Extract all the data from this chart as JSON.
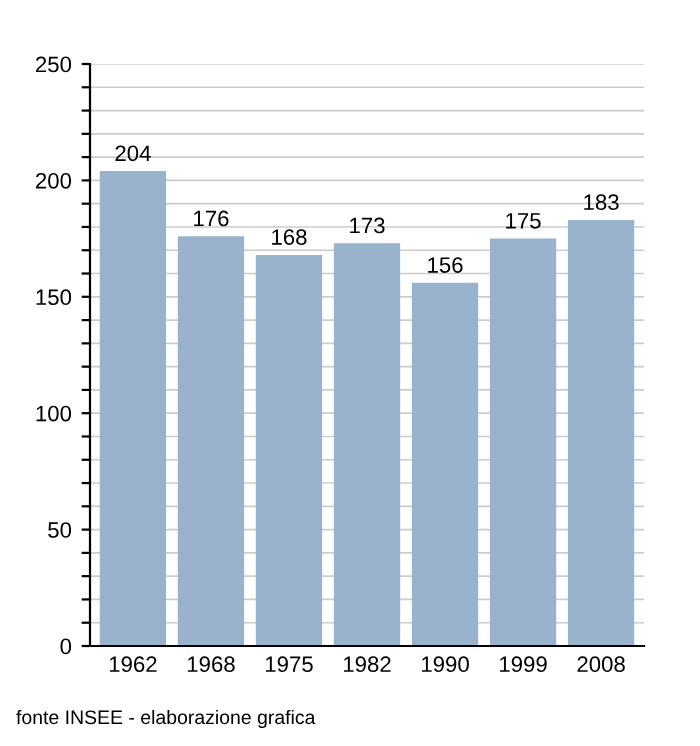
{
  "chart_data": {
    "type": "bar",
    "categories": [
      "1962",
      "1968",
      "1975",
      "1982",
      "1990",
      "1999",
      "2008"
    ],
    "values": [
      204,
      176,
      168,
      173,
      156,
      175,
      183
    ],
    "color": "#9ab3cd",
    "ylim": [
      0,
      250
    ],
    "yticks": [
      0,
      {
        "value": 10,
        "label": null
      },
      {
        "value": 20,
        "label": null
      },
      {
        "value": 30,
        "label": null
      },
      {
        "value": 40,
        "label": null
      },
      50,
      {
        "value": 60,
        "label": null
      },
      {
        "value": 70,
        "label": null
      },
      {
        "value": 80,
        "label": null
      },
      {
        "value": 90,
        "label": null
      },
      100,
      {
        "value": 110,
        "label": null
      },
      {
        "value": 120,
        "label": null
      },
      {
        "value": 130,
        "label": null
      },
      {
        "value": 140,
        "label": null
      },
      150,
      {
        "value": 160,
        "label": null
      },
      {
        "value": 170,
        "label": null
      },
      {
        "value": 180,
        "label": null
      },
      {
        "value": 190,
        "label": null
      },
      200,
      {
        "value": 210,
        "label": null
      },
      {
        "value": 220,
        "label": null
      },
      {
        "value": 230,
        "label": null
      },
      {
        "value": 240,
        "label": null
      },
      250
    ],
    "grid": "y",
    "data_labels": true,
    "annotations": [
      "fonte INSEE - elaborazione grafica"
    ]
  }
}
